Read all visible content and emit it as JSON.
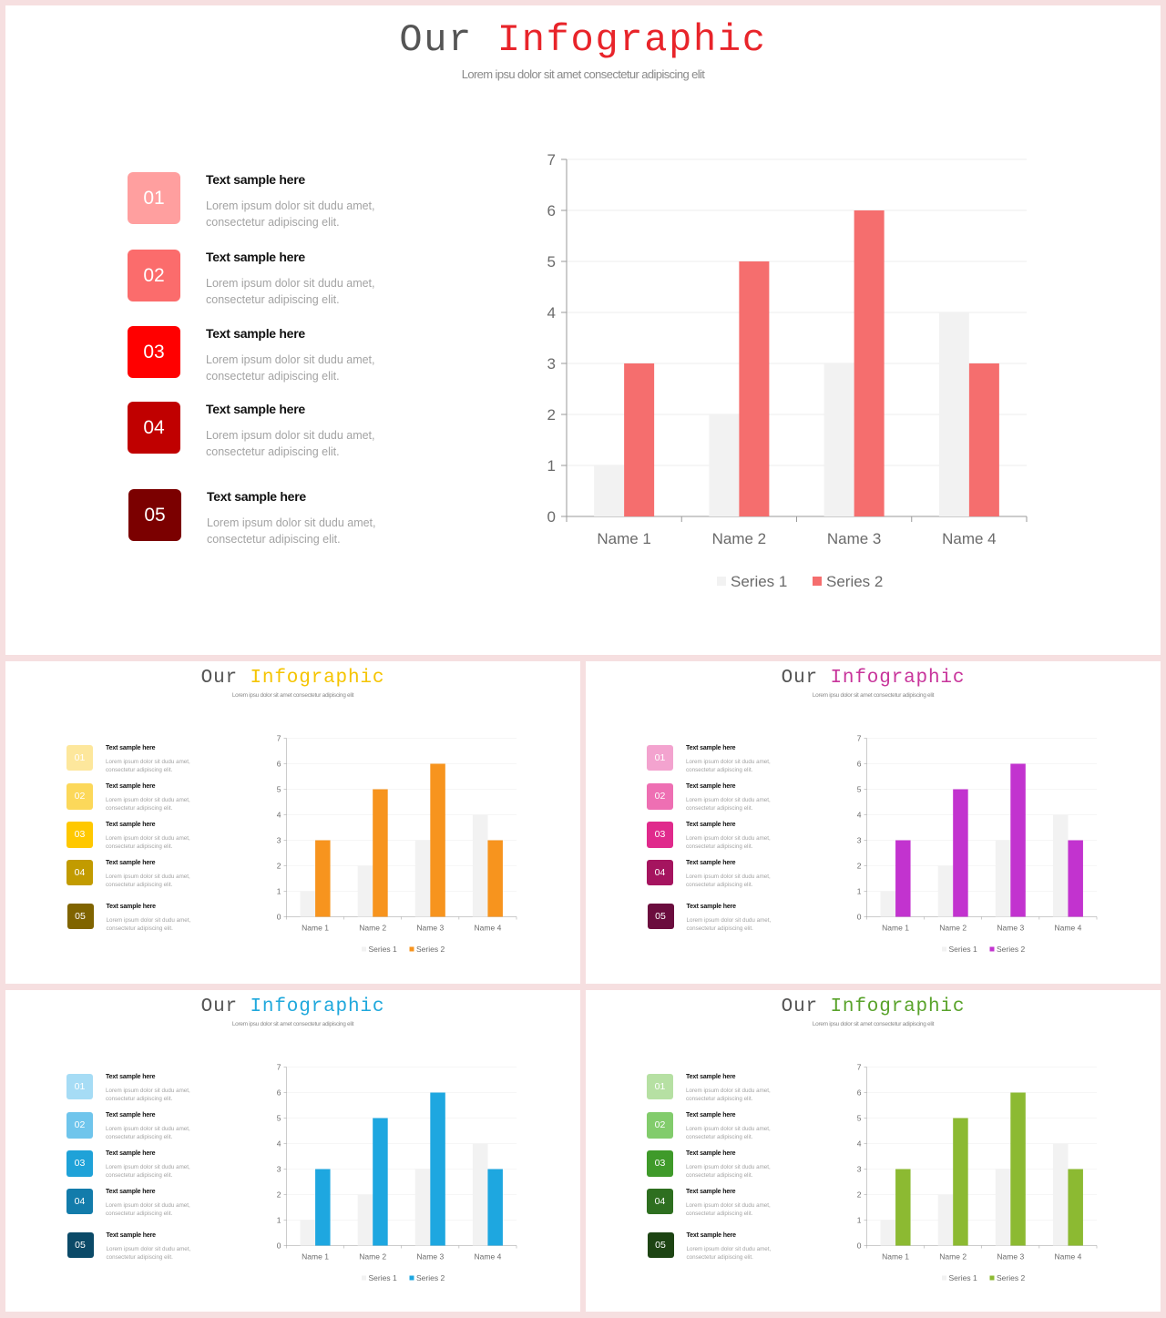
{
  "slides": [
    {
      "title_word1": "Our",
      "title_word2": "Infographic",
      "subtitle": "Lorem ipsu dolor sit amet consectetur adipiscing elit",
      "colors": {
        "accent": "#e8242a",
        "series2": "#f56e6e",
        "badges": [
          "#ff9f9f",
          "#fb6c6c",
          "#ff0000",
          "#c00000",
          "#7b0000"
        ]
      },
      "items": [
        {
          "number": "01",
          "heading": "Text sample here",
          "line1": "Lorem ipsum dolor sit dudu amet,",
          "line2": "consectetur adipiscing elit."
        },
        {
          "number": "02",
          "heading": "Text sample here",
          "line1": "Lorem ipsum dolor sit dudu amet,",
          "line2": "consectetur adipiscing elit."
        },
        {
          "number": "03",
          "heading": "Text sample here",
          "line1": "Lorem ipsum dolor sit dudu amet,",
          "line2": "consectetur adipiscing elit."
        },
        {
          "number": "04",
          "heading": "Text sample here",
          "line1": "Lorem ipsum dolor sit dudu amet,",
          "line2": "consectetur adipiscing elit."
        },
        {
          "number": "05",
          "heading": "Text sample here",
          "line1": "Lorem ipsum dolor sit dudu amet,",
          "line2": "consectetur adipiscing elit."
        }
      ]
    },
    {
      "title_word1": "Our",
      "title_word2": "Infographic",
      "subtitle": "Lorem ipsu dolor sit amet consectetur adipiscing elit",
      "colors": {
        "accent": "#f5c400",
        "series2": "#f7941e",
        "badges": [
          "#fde79c",
          "#fcd85a",
          "#ffc800",
          "#c29b00",
          "#806400"
        ]
      },
      "items": [
        {
          "number": "01",
          "heading": "Text sample here",
          "line1": "Lorem ipsum dolor sit dudu amet,",
          "line2": "consectetur adipiscing elit."
        },
        {
          "number": "02",
          "heading": "Text sample here",
          "line1": "Lorem ipsum dolor sit dudu amet,",
          "line2": "consectetur adipiscing elit."
        },
        {
          "number": "03",
          "heading": "Text sample here",
          "line1": "Lorem ipsum dolor sit dudu amet,",
          "line2": "consectetur adipiscing elit."
        },
        {
          "number": "04",
          "heading": "Text sample here",
          "line1": "Lorem ipsum dolor sit dudu amet,",
          "line2": "consectetur adipiscing elit."
        },
        {
          "number": "05",
          "heading": "Text sample here",
          "line1": "Lorem ipsum dolor sit dudu amet,",
          "line2": "consectetur adipiscing elit."
        }
      ]
    },
    {
      "title_word1": "Our",
      "title_word2": "Infographic",
      "subtitle": "Lorem ipsu dolor sit amet consectetur adipiscing elit",
      "colors": {
        "accent": "#c8359b",
        "series2": "#c233cf",
        "badges": [
          "#f3a3cf",
          "#ee6fb3",
          "#e02a8c",
          "#a5145f",
          "#6b0d3e"
        ]
      },
      "items": [
        {
          "number": "01",
          "heading": "Text sample here",
          "line1": "Lorem ipsum dolor sit dudu amet,",
          "line2": "consectetur adipiscing elit."
        },
        {
          "number": "02",
          "heading": "Text sample here",
          "line1": "Lorem ipsum dolor sit dudu amet,",
          "line2": "consectetur adipiscing elit."
        },
        {
          "number": "03",
          "heading": "Text sample here",
          "line1": "Lorem ipsum dolor sit dudu amet,",
          "line2": "consectetur adipiscing elit."
        },
        {
          "number": "04",
          "heading": "Text sample here",
          "line1": "Lorem ipsum dolor sit dudu amet,",
          "line2": "consectetur adipiscing elit."
        },
        {
          "number": "05",
          "heading": "Text sample here",
          "line1": "Lorem ipsum dolor sit dudu amet,",
          "line2": "consectetur adipiscing elit."
        }
      ]
    },
    {
      "title_word1": "Our",
      "title_word2": "Infographic",
      "subtitle": "Lorem ipsu dolor sit amet consectetur adipiscing elit",
      "colors": {
        "accent": "#1fa8dc",
        "series2": "#1ea7e0",
        "badges": [
          "#a6dcf5",
          "#6fc5ec",
          "#1fa2d8",
          "#137cab",
          "#0b4a68"
        ]
      },
      "items": [
        {
          "number": "01",
          "heading": "Text sample here",
          "line1": "Lorem ipsum dolor sit dudu amet,",
          "line2": "consectetur adipiscing elit."
        },
        {
          "number": "02",
          "heading": "Text sample here",
          "line1": "Lorem ipsum dolor sit dudu amet,",
          "line2": "consectetur adipiscing elit."
        },
        {
          "number": "03",
          "heading": "Text sample here",
          "line1": "Lorem ipsum dolor sit dudu amet,",
          "line2": "consectetur adipiscing elit."
        },
        {
          "number": "04",
          "heading": "Text sample here",
          "line1": "Lorem ipsum dolor sit dudu amet,",
          "line2": "consectetur adipiscing elit."
        },
        {
          "number": "05",
          "heading": "Text sample here",
          "line1": "Lorem ipsum dolor sit dudu amet,",
          "line2": "consectetur adipiscing elit."
        }
      ]
    },
    {
      "title_word1": "Our",
      "title_word2": "Infographic",
      "subtitle": "Lorem ipsu dolor sit amet consectetur adipiscing elit",
      "colors": {
        "accent": "#59a32b",
        "series2": "#8cba32",
        "badges": [
          "#b6e0a3",
          "#82cc6c",
          "#3f9a2a",
          "#2e6f20",
          "#1d4413"
        ]
      },
      "items": [
        {
          "number": "01",
          "heading": "Text sample here",
          "line1": "Lorem ipsum dolor sit dudu amet,",
          "line2": "consectetur adipiscing elit."
        },
        {
          "number": "02",
          "heading": "Text sample here",
          "line1": "Lorem ipsum dolor sit dudu amet,",
          "line2": "consectetur adipiscing elit."
        },
        {
          "number": "03",
          "heading": "Text sample here",
          "line1": "Lorem ipsum dolor sit dudu amet,",
          "line2": "consectetur adipiscing elit."
        },
        {
          "number": "04",
          "heading": "Text sample here",
          "line1": "Lorem ipsum dolor sit dudu amet,",
          "line2": "consectetur adipiscing elit."
        },
        {
          "number": "05",
          "heading": "Text sample here",
          "line1": "Lorem ipsum dolor sit dudu amet,",
          "line2": "consectetur adipiscing elit."
        }
      ]
    }
  ],
  "chart_data": {
    "type": "bar",
    "categories": [
      "Name 1",
      "Name 2",
      "Name 3",
      "Name 4"
    ],
    "series": [
      {
        "name": "Series 1",
        "values": [
          1,
          2,
          3,
          4
        ],
        "color": "#f2f2f2"
      },
      {
        "name": "Series 2",
        "values": [
          3,
          5,
          6,
          3
        ]
      }
    ],
    "ylim": [
      0,
      7
    ],
    "yticks": [
      0,
      1,
      2,
      3,
      4,
      5,
      6,
      7
    ],
    "legend": "bottom",
    "grid": true
  }
}
